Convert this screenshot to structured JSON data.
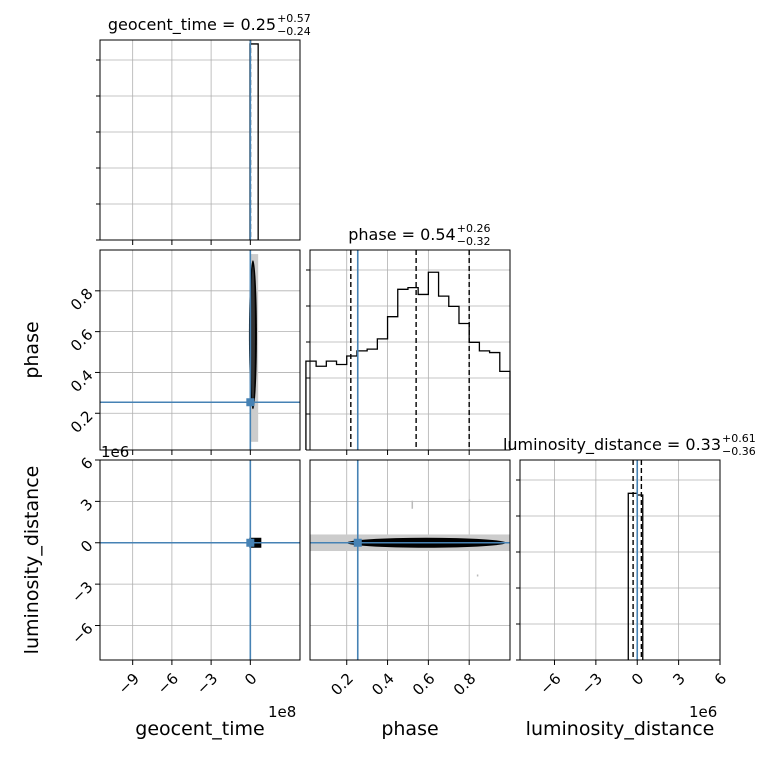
{
  "chart_data": {
    "type": "corner",
    "parameters": [
      "geocent_time",
      "phase",
      "luminosity_distance"
    ],
    "grid": true,
    "titles": [
      {
        "param": "geocent_time",
        "text": "geocent_time = 0.25",
        "plus": "+0.57",
        "minus": "−0.24"
      },
      {
        "param": "phase",
        "text": "phase = 0.54",
        "plus": "+0.26",
        "minus": "−0.32"
      },
      {
        "param": "luminosity_distance",
        "text": "luminosity_distance = 0.33",
        "plus": "+0.61",
        "minus": "−0.36"
      }
    ],
    "axes": {
      "geocent_time": {
        "label": "geocent_time",
        "multiplier": "1e8",
        "range": [
          -11.5,
          3.8
        ],
        "ticks": [
          -9,
          -6,
          -3,
          0
        ],
        "tick_labels": [
          "−9",
          "−6",
          "−3",
          "0"
        ]
      },
      "phase": {
        "label": "phase",
        "range": [
          0.02,
          1.0
        ],
        "ticks": [
          0.2,
          0.4,
          0.6,
          0.8
        ],
        "tick_labels": [
          "0.2",
          "0.4",
          "0.6",
          "0.8"
        ]
      },
      "luminosity_distance": {
        "label": "luminosity_distance",
        "multiplier": "1e6",
        "range": [
          -8.5,
          6.0
        ],
        "ticks": [
          -6,
          -3,
          0,
          3,
          6
        ],
        "tick_labels": [
          "−6",
          "−3",
          "0",
          "3",
          "6"
        ]
      }
    },
    "truths": {
      "geocent_time": 0.0,
      "phase": 0.254,
      "luminosity_distance": 0.0
    },
    "quantiles": {
      "geocent_time": [
        -0.002,
        0.0025,
        0.0082
      ],
      "phase": [
        0.22,
        0.54,
        0.8
      ],
      "luminosity_distance": [
        -0.3,
        0.0,
        0.3
      ]
    },
    "histograms": {
      "geocent_time": {
        "edges": [
          -0.03,
          0.6
        ],
        "counts": [
          1.0
        ],
        "ymax": 1.02
      },
      "phase": {
        "edges": [
          0.0,
          0.05,
          0.1,
          0.15,
          0.2,
          0.25,
          0.3,
          0.35,
          0.4,
          0.45,
          0.5,
          0.55,
          0.6,
          0.65,
          0.7,
          0.75,
          0.8,
          0.85,
          0.9,
          0.95,
          1.0
        ],
        "counts": [
          0.52,
          0.49,
          0.52,
          0.5,
          0.55,
          0.58,
          0.59,
          0.65,
          0.78,
          0.94,
          0.95,
          0.91,
          1.04,
          0.9,
          0.84,
          0.74,
          0.63,
          0.58,
          0.57,
          0.46
        ],
        "ymax": 1.17
      },
      "luminosity_distance": {
        "edges": [
          -0.65,
          0.0,
          0.4
        ],
        "counts": [
          1.0,
          0.99
        ],
        "ymax": 1.2
      }
    },
    "contours": {
      "phase_vs_geocent_time": {
        "x_range": [
          0.1,
          0.4
        ],
        "y_range": [
          0.22,
          0.95
        ]
      },
      "luminosity_distance_vs_phase": {
        "x_range": [
          0.2,
          0.98
        ],
        "y_range": [
          -0.35,
          0.35
        ]
      }
    }
  }
}
